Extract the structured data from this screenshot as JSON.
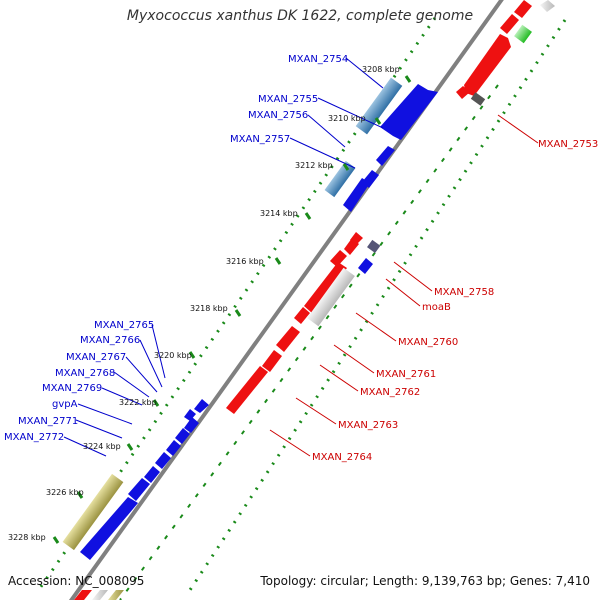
{
  "genome_title": "Myxococcus xanthus DK 1622, complete genome",
  "footer": {
    "accession": "Accession: NC_008095",
    "topology": "Topology: circular; Length: 9,139,763 bp; Genes: 7,410"
  },
  "ticks": [
    "3208 kbp",
    "3210 kbp",
    "3212 kbp",
    "3214 kbp",
    "3216 kbp",
    "3218 kbp",
    "3220 kbp",
    "3222 kbp",
    "3224 kbp",
    "3226 kbp",
    "3228 kbp"
  ],
  "left_labels": [
    "MXAN_2754",
    "MXAN_2755",
    "MXAN_2756",
    "MXAN_2757",
    "MXAN_2765",
    "MXAN_2766",
    "MXAN_2767",
    "MXAN_2768",
    "MXAN_2769",
    "gvpA",
    "MXAN_2771",
    "MXAN_2772"
  ],
  "right_labels": [
    "MXAN_2753",
    "MXAN_2758",
    "moaB",
    "MXAN_2760",
    "MXAN_2761",
    "MXAN_2762",
    "MXAN_2763",
    "MXAN_2764"
  ],
  "colors": {
    "forward": "#1010e0",
    "reverse": "#ee1111",
    "label_left": "#0000cc",
    "label_right": "#cc0000",
    "backbone": "#808080",
    "gc_dots": "#1a8a1a"
  }
}
